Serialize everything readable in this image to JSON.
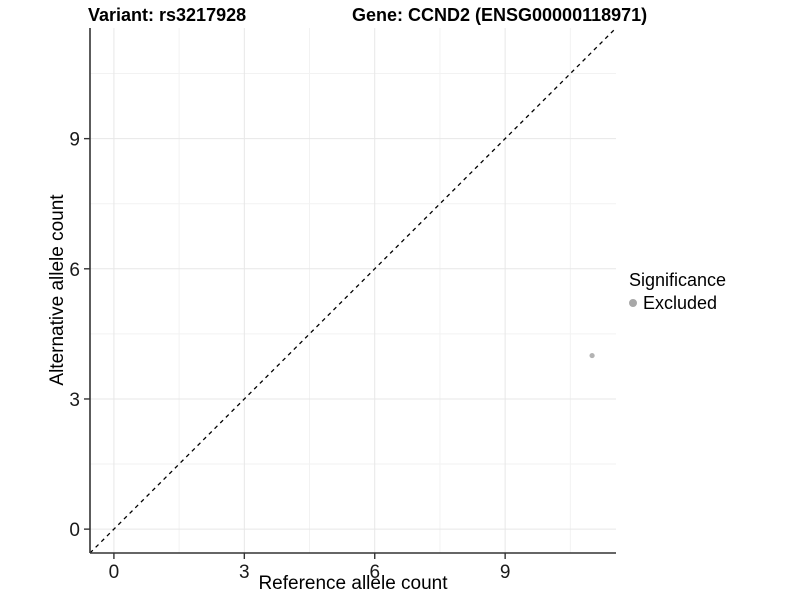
{
  "header": {
    "variant_title": "Variant: rs3217928",
    "gene_title": "Gene: CCND2 (ENSG00000118971)"
  },
  "axes": {
    "x": {
      "label": "Reference allele count"
    },
    "y": {
      "label": "Alternative allele count"
    }
  },
  "legend": {
    "title": "Significance",
    "items": [
      {
        "label": "Excluded",
        "color": "#a8a8a8"
      }
    ]
  },
  "colors": {
    "background": "#ffffff",
    "grid_major": "#e7e7e7",
    "grid_minor": "#f2f2f2",
    "axis_line": "#333333",
    "tick_label": "#1a1a1a",
    "reference_line": "#000000",
    "point": "#b3b3b3"
  },
  "chart_data": {
    "type": "scatter",
    "title": "Variant: rs3217928 / Gene: CCND2 (ENSG00000118971)",
    "xlabel": "Reference allele count",
    "ylabel": "Alternative allele count",
    "xlim": [
      -0.55,
      11.55
    ],
    "ylim": [
      -0.55,
      11.55
    ],
    "x_ticks": [
      0,
      3,
      6,
      9
    ],
    "y_ticks": [
      0,
      3,
      6,
      9
    ],
    "x_minor_ticks": [
      1.5,
      4.5,
      7.5,
      10.5
    ],
    "y_minor_ticks": [
      1.5,
      4.5,
      7.5,
      10.5
    ],
    "grid": true,
    "legend_position": "right",
    "series": [
      {
        "name": "Excluded",
        "points": [
          {
            "x": 11,
            "y": 4
          }
        ]
      }
    ],
    "reference_line": {
      "type": "identity",
      "slope": 1,
      "intercept": 0,
      "style": "dashed"
    }
  }
}
